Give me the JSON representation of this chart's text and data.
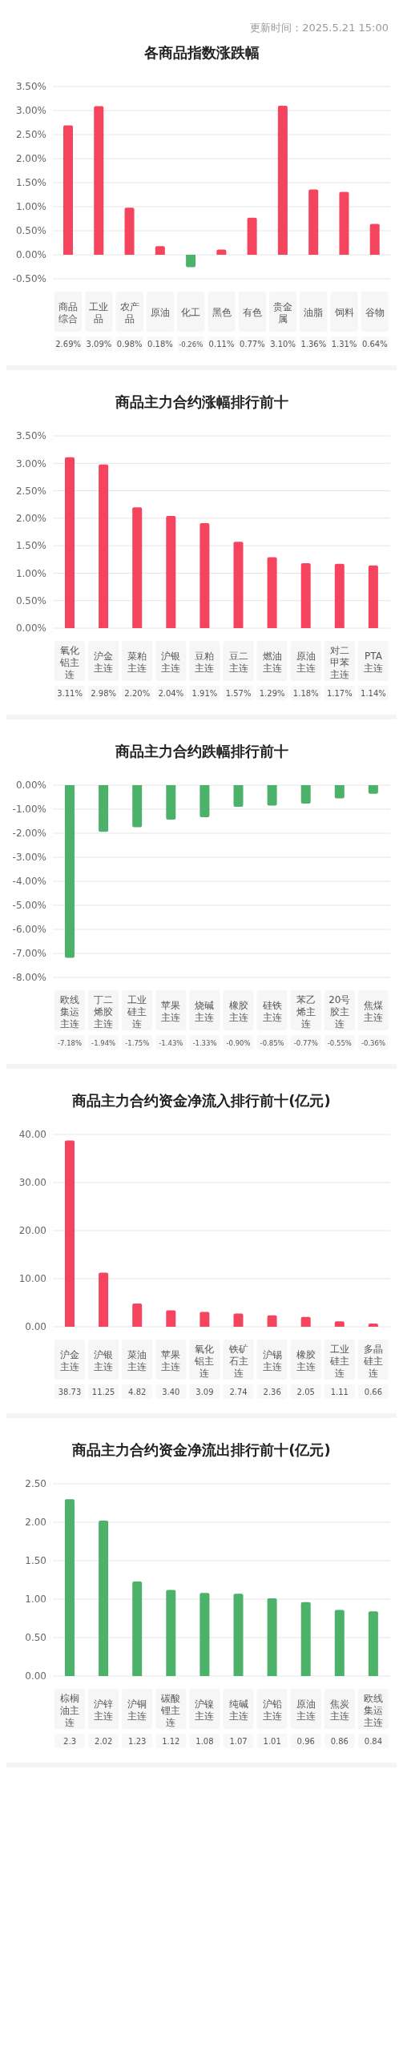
{
  "chart_data": [
    {
      "type": "bar",
      "title": "各商品指数涨跌幅",
      "annotations": [
        "更新时间：2025.5.21 15:00"
      ],
      "categories": [
        "商品综合",
        "工业品",
        "农产品",
        "原油",
        "化工",
        "黑色",
        "有色",
        "贵金属",
        "油脂",
        "饲料",
        "谷物"
      ],
      "values": [
        2.69,
        3.09,
        0.98,
        0.18,
        -0.26,
        0.11,
        0.77,
        3.1,
        1.36,
        1.31,
        0.64
      ],
      "colors": [
        "#f5445e",
        "#f5445e",
        "#f5445e",
        "#f5445e",
        "#4cb26a",
        "#f5445e",
        "#f5445e",
        "#f5445e",
        "#f5445e",
        "#f5445e",
        "#f5445e"
      ],
      "value_labels": [
        "2.69%",
        "3.09%",
        "0.98%",
        "0.18%",
        "-0.26%",
        "0.11%",
        "0.77%",
        "3.10%",
        "1.36%",
        "1.31%",
        "0.64%"
      ],
      "ylim": [
        -0.5,
        3.5
      ],
      "yticks": [
        {
          "value": -0.5,
          "label": "-0.50%"
        },
        {
          "value": 0,
          "label": "0.00%"
        },
        {
          "value": 0.5,
          "label": "0.50%"
        },
        {
          "value": 1,
          "label": "1.00%"
        },
        {
          "value": 1.5,
          "label": "1.50%"
        },
        {
          "value": 2,
          "label": "2.00%"
        },
        {
          "value": 2.5,
          "label": "2.50%"
        },
        {
          "value": 3,
          "label": "3.00%"
        },
        {
          "value": 3.5,
          "label": "3.50%"
        }
      ],
      "grid": "y"
    },
    {
      "type": "bar",
      "title": "商品主力合约涨幅排行前十",
      "categories": [
        "氧化铝主连",
        "沪金主连",
        "菜粕主连",
        "沪银主连",
        "豆粕主连",
        "豆二主连",
        "燃油主连",
        "原油主连",
        "对二甲苯主连",
        "PTA主连"
      ],
      "values": [
        3.11,
        2.98,
        2.2,
        2.04,
        1.91,
        1.57,
        1.29,
        1.18,
        1.17,
        1.14
      ],
      "color": "#f5445e",
      "value_labels": [
        "3.11%",
        "2.98%",
        "2.20%",
        "2.04%",
        "1.91%",
        "1.57%",
        "1.29%",
        "1.18%",
        "1.17%",
        "1.14%"
      ],
      "ylim": [
        0,
        3.5
      ],
      "yticks": [
        {
          "value": 0,
          "label": "0.00%"
        },
        {
          "value": 0.5,
          "label": "0.50%"
        },
        {
          "value": 1,
          "label": "1.00%"
        },
        {
          "value": 1.5,
          "label": "1.50%"
        },
        {
          "value": 2,
          "label": "2.00%"
        },
        {
          "value": 2.5,
          "label": "2.50%"
        },
        {
          "value": 3,
          "label": "3.00%"
        },
        {
          "value": 3.5,
          "label": "3.50%"
        }
      ],
      "grid": "y"
    },
    {
      "type": "bar",
      "title": "商品主力合约跌幅排行前十",
      "categories": [
        "欧线集运主连",
        "丁二烯胶主连",
        "工业硅主连",
        "苹果主连",
        "烧碱主连",
        "橡胶主连",
        "硅铁主连",
        "苯乙烯主连",
        "20号胶主连",
        "焦煤主连"
      ],
      "values": [
        -7.18,
        -1.94,
        -1.75,
        -1.43,
        -1.33,
        -0.9,
        -0.85,
        -0.77,
        -0.55,
        -0.36
      ],
      "color": "#4cb26a",
      "value_labels": [
        "-7.18%",
        "-1.94%",
        "-1.75%",
        "-1.43%",
        "-1.33%",
        "-0.90%",
        "-0.85%",
        "-0.77%",
        "-0.55%",
        "-0.36%"
      ],
      "ylim": [
        -8,
        0
      ],
      "yticks": [
        {
          "value": -8,
          "label": "-8.00%"
        },
        {
          "value": -7,
          "label": "-7.00%"
        },
        {
          "value": -6,
          "label": "-6.00%"
        },
        {
          "value": -5,
          "label": "-5.00%"
        },
        {
          "value": -4,
          "label": "-4.00%"
        },
        {
          "value": -3,
          "label": "-3.00%"
        },
        {
          "value": -2,
          "label": "-2.00%"
        },
        {
          "value": -1,
          "label": "-1.00%"
        },
        {
          "value": 0,
          "label": "0.00%"
        }
      ],
      "grid": "y"
    },
    {
      "type": "bar",
      "title": "商品主力合约资金净流入排行前十(亿元)",
      "categories": [
        "沪金主连",
        "沪银主连",
        "菜油主连",
        "苹果主连",
        "氧化铝主连",
        "铁矿石主连",
        "沪锡主连",
        "橡胶主连",
        "工业硅主连",
        "多晶硅主连"
      ],
      "values": [
        38.73,
        11.25,
        4.82,
        3.4,
        3.09,
        2.74,
        2.36,
        2.05,
        1.11,
        0.66
      ],
      "color": "#f5445e",
      "value_labels": [
        "38.73",
        "11.25",
        "4.82",
        "3.40",
        "3.09",
        "2.74",
        "2.36",
        "2.05",
        "1.11",
        "0.66"
      ],
      "ylim": [
        0,
        40
      ],
      "yticks": [
        {
          "value": 0,
          "label": "0.00"
        },
        {
          "value": 10,
          "label": "10.00"
        },
        {
          "value": 20,
          "label": "20.00"
        },
        {
          "value": 30,
          "label": "30.00"
        },
        {
          "value": 40,
          "label": "40.00"
        }
      ],
      "grid": "y"
    },
    {
      "type": "bar",
      "title": "商品主力合约资金净流出排行前十(亿元)",
      "categories": [
        "棕榈油主连",
        "沪锌主连",
        "沪铜主连",
        "碳酸锂主连",
        "沪镍主连",
        "纯碱主连",
        "沪铅主连",
        "原油主连",
        "焦炭主连",
        "欧线集运主连"
      ],
      "values": [
        2.3,
        2.02,
        1.23,
        1.12,
        1.08,
        1.07,
        1.01,
        0.96,
        0.86,
        0.84
      ],
      "color": "#4cb26a",
      "value_labels": [
        "2.3",
        "2.02",
        "1.23",
        "1.12",
        "1.08",
        "1.07",
        "1.01",
        "0.96",
        "0.86",
        "0.84"
      ],
      "ylim": [
        0,
        2.5
      ],
      "yticks": [
        {
          "value": 0,
          "label": "0.00"
        },
        {
          "value": 0.5,
          "label": "0.50"
        },
        {
          "value": 1,
          "label": "1.00"
        },
        {
          "value": 1.5,
          "label": "1.50"
        },
        {
          "value": 2,
          "label": "2.00"
        },
        {
          "value": 2.5,
          "label": "2.50"
        }
      ],
      "grid": "y"
    }
  ]
}
